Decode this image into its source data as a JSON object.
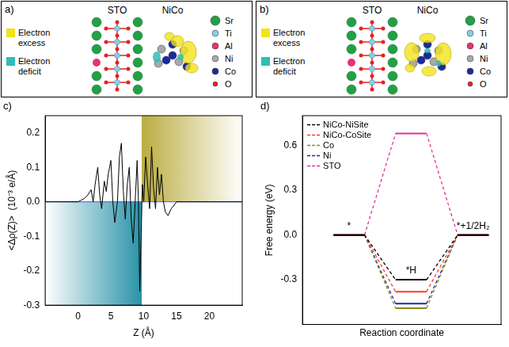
{
  "panels": [
    {
      "label": "a)",
      "substrate": "STO",
      "cluster": "NiCo",
      "charge_legend": [
        {
          "text": "Electron excess",
          "color": "#f2e21a"
        },
        {
          "text": "Electron deficit",
          "color": "#2fbdb5"
        }
      ],
      "elements": [
        {
          "symbol": "Sr",
          "color": "#23a045"
        },
        {
          "symbol": "Ti",
          "color": "#86cfe6"
        },
        {
          "symbol": "Al",
          "color": "#e8326f"
        },
        {
          "symbol": "Ni",
          "color": "#a9a9a9"
        },
        {
          "symbol": "Co",
          "color": "#1b2a9c"
        },
        {
          "symbol": "O",
          "color": "#e52222"
        }
      ]
    },
    {
      "label": "b)",
      "substrate": "STO",
      "cluster": "NiCo",
      "charge_legend": [
        {
          "text": "Electron excess",
          "color": "#f2e21a"
        },
        {
          "text": "Electron deficit",
          "color": "#2fbdb5"
        }
      ],
      "elements": [
        {
          "symbol": "Sr",
          "color": "#23a045"
        },
        {
          "symbol": "Ti",
          "color": "#86cfe6"
        },
        {
          "symbol": "Al",
          "color": "#e8326f"
        },
        {
          "symbol": "Ni",
          "color": "#a9a9a9"
        },
        {
          "symbol": "Co",
          "color": "#1b2a9c"
        },
        {
          "symbol": "O",
          "color": "#e52222"
        }
      ]
    }
  ],
  "chart_data": [
    {
      "panel": "c)",
      "type": "line",
      "x_label": "Z (Å)",
      "y_label": "<Δρ(Z)>  (10⁻³ e/Å)",
      "x": [
        -5,
        0,
        0.5,
        1,
        1.5,
        2,
        2.3,
        2.6,
        3,
        3.3,
        3.6,
        4,
        4.3,
        4.6,
        5,
        5.3,
        5.6,
        6,
        6.3,
        6.6,
        6.9,
        7.2,
        7.5,
        7.8,
        8.1,
        8.4,
        8.7,
        9,
        9.2,
        9.4,
        9.6,
        9.8,
        10,
        10.3,
        10.6,
        10.9,
        11.2,
        11.5,
        11.8,
        12.1,
        12.4,
        12.7,
        13,
        13.3,
        13.7,
        14.2,
        15,
        20,
        25
      ],
      "values": [
        0,
        0,
        0.005,
        0.01,
        0.02,
        0.035,
        0.0,
        0.05,
        0.1,
        0.02,
        -0.02,
        0.06,
        0.03,
        0.08,
        0.12,
        0.0,
        -0.06,
        0.0,
        0.13,
        0.17,
        0.03,
        -0.05,
        0.05,
        0.1,
        -0.05,
        -0.12,
        0.0,
        0.12,
        0.0,
        -0.26,
        -0.1,
        0.05,
        0,
        0.13,
        0.05,
        -0.02,
        0.16,
        0.04,
        -0.02,
        0.1,
        0.02,
        0.08,
        0,
        -0.03,
        -0.04,
        -0.02,
        0,
        0,
        0
      ],
      "color": "#000000",
      "xlim": [
        -5,
        25
      ],
      "xticks": [
        0,
        5,
        10,
        15,
        20
      ],
      "ylim": [
        -0.3,
        0.25
      ],
      "yticks": [
        -0.3,
        -0.2,
        -0.1,
        {
          "value": 0,
          "label": "0.0"
        },
        0.1,
        0.2
      ],
      "regions": [
        {
          "x": [
            -5,
            9.7
          ],
          "y": [
            -0.3,
            0
          ],
          "color": "#12879f"
        },
        {
          "x": [
            9.7,
            25
          ],
          "y": [
            0,
            0.25
          ],
          "color": "#b3a42c"
        }
      ],
      "grid": false
    },
    {
      "panel": "d)",
      "type": "line",
      "x_label": "Reaction coordinate",
      "y_label": "Free energy (eV)",
      "categories": [
        "*",
        "*H",
        "*+1/2H₂"
      ],
      "series": [
        {
          "name": "NiCo-NiSite",
          "color": "#000000",
          "values": [
            0,
            -0.3,
            0
          ]
        },
        {
          "name": "NiCo-CoSite",
          "color": "#ff3b1f",
          "values": [
            0,
            -0.38,
            0
          ]
        },
        {
          "name": "Co",
          "color": "#8c8c1a",
          "values": [
            0,
            -0.49,
            0
          ]
        },
        {
          "name": "Ni",
          "color": "#1f2a9e",
          "values": [
            0,
            -0.46,
            0
          ]
        },
        {
          "name": "STO",
          "color": "#e0359a",
          "values": [
            0,
            0.68,
            0
          ]
        }
      ],
      "ylim": [
        -0.6,
        0.8
      ],
      "yticks": [
        -0.3,
        {
          "value": 0,
          "label": "0.0"
        },
        0.3,
        0.6
      ],
      "legend": "upper left",
      "tick_labels": "y",
      "grid": false
    }
  ]
}
